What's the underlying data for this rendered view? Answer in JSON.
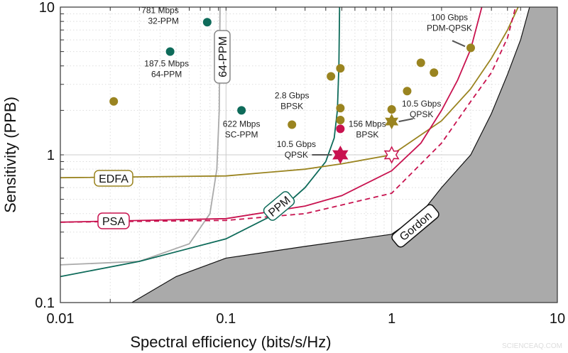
{
  "chart_data": {
    "type": "scatter",
    "xlabel": "Spectral efficiency (bits/s/Hz)",
    "ylabel": "Sensitivity (PPB)",
    "xscale": "log",
    "yscale": "log",
    "xlim": [
      0.01,
      10
    ],
    "ylim": [
      0.1,
      10
    ],
    "xticks": [
      "0.01",
      "0.1",
      "1",
      "10"
    ],
    "yticks": [
      "0.1",
      "1",
      "10"
    ],
    "grid": true,
    "colors": {
      "teal": "#0e6b5a",
      "olive": "#9a8420",
      "crimson": "#c8124f",
      "gray": "#aaaaaa",
      "shade": "#aaaaaa"
    },
    "curves": [
      {
        "name": "Gordon",
        "color": "#111111",
        "dash": false,
        "points": [
          [
            0.027,
            0.1
          ],
          [
            0.05,
            0.15
          ],
          [
            0.1,
            0.2
          ],
          [
            0.3,
            0.24
          ],
          [
            0.5,
            0.26
          ],
          [
            1,
            0.29
          ],
          [
            1.5,
            0.4
          ],
          [
            2,
            0.6
          ],
          [
            3,
            1.0
          ],
          [
            4,
            1.9
          ],
          [
            5,
            3.5
          ],
          [
            6,
            6
          ],
          [
            6.8,
            10
          ]
        ]
      },
      {
        "name": "PSA",
        "color": "#c8124f",
        "dash": false,
        "points": [
          [
            0.01,
            0.35
          ],
          [
            0.1,
            0.37
          ],
          [
            0.3,
            0.45
          ],
          [
            0.5,
            0.53
          ],
          [
            1,
            0.78
          ],
          [
            1.5,
            1.2
          ],
          [
            2,
            2
          ],
          [
            2.5,
            3.2
          ],
          [
            3,
            5.2
          ],
          [
            3.5,
            10
          ]
        ]
      },
      {
        "name": "",
        "color": "#c8124f",
        "dash": true,
        "points": [
          [
            0.01,
            0.35
          ],
          [
            0.1,
            0.36
          ],
          [
            0.3,
            0.4
          ],
          [
            1,
            0.55
          ],
          [
            2,
            1.2
          ],
          [
            3,
            2.3
          ],
          [
            4,
            3.6
          ],
          [
            5,
            6.2
          ],
          [
            5.6,
            10
          ]
        ]
      },
      {
        "name": "EDFA",
        "color": "#9a8420",
        "dash": false,
        "points": [
          [
            0.01,
            0.7
          ],
          [
            0.1,
            0.72
          ],
          [
            0.3,
            0.8
          ],
          [
            0.5,
            0.87
          ],
          [
            1,
            1.0
          ],
          [
            2,
            1.7
          ],
          [
            3,
            2.8
          ],
          [
            4,
            4.5
          ],
          [
            5,
            7
          ],
          [
            5.8,
            10
          ]
        ]
      },
      {
        "name": "PPM",
        "color": "#0e6b5a",
        "dash": false,
        "points": [
          [
            0.01,
            0.15
          ],
          [
            0.03,
            0.19
          ],
          [
            0.1,
            0.27
          ],
          [
            0.2,
            0.4
          ],
          [
            0.3,
            0.6
          ],
          [
            0.4,
            0.9
          ],
          [
            0.45,
            1.3
          ],
          [
            0.47,
            2
          ],
          [
            0.48,
            4
          ],
          [
            0.485,
            10
          ]
        ]
      },
      {
        "name": "64-PPM",
        "color": "#aaaaaa",
        "dash": false,
        "points": [
          [
            0.01,
            0.18
          ],
          [
            0.03,
            0.19
          ],
          [
            0.06,
            0.25
          ],
          [
            0.08,
            0.4
          ],
          [
            0.088,
            0.8
          ],
          [
            0.091,
            2
          ],
          [
            0.092,
            10
          ]
        ]
      }
    ],
    "points": [
      {
        "x": 0.077,
        "y": 7.9,
        "marker": "dot",
        "color": "#0e6b5a",
        "label": [
          "781 Mbps",
          "32-PPM"
        ]
      },
      {
        "x": 0.046,
        "y": 5.0,
        "marker": "dot",
        "color": "#0e6b5a",
        "label": [
          "187.5 Mbps",
          "64-PPM"
        ]
      },
      {
        "x": 0.124,
        "y": 2.0,
        "marker": "dot",
        "color": "#0e6b5a",
        "label": [
          "622 Mbps",
          "SC-PPM"
        ]
      },
      {
        "x": 0.021,
        "y": 2.3,
        "marker": "dot",
        "color": "#9a8420",
        "label": []
      },
      {
        "x": 0.25,
        "y": 1.6,
        "marker": "dot",
        "color": "#9a8420",
        "label": [
          "2.8 Gbps",
          "BPSK"
        ]
      },
      {
        "x": 0.43,
        "y": 3.4,
        "marker": "dot",
        "color": "#9a8420",
        "label": []
      },
      {
        "x": 0.49,
        "y": 3.85,
        "marker": "dot",
        "color": "#9a8420",
        "label": []
      },
      {
        "x": 0.49,
        "y": 2.07,
        "marker": "dot",
        "color": "#9a8420",
        "label": []
      },
      {
        "x": 0.49,
        "y": 1.72,
        "marker": "dot",
        "color": "#9a8420",
        "label": []
      },
      {
        "x": 0.49,
        "y": 1.5,
        "marker": "dot",
        "color": "#c8124f",
        "label": [
          "156 Mbps",
          "BPSK"
        ]
      },
      {
        "x": 0.49,
        "y": 1.0,
        "marker": "star",
        "color": "#c8124f",
        "label": [
          "10.5 Gbps",
          "QPSK"
        ]
      },
      {
        "x": 1.0,
        "y": 1.0,
        "marker": "open-star",
        "color": "#c8124f",
        "label": []
      },
      {
        "x": 1.0,
        "y": 2.03,
        "marker": "dot",
        "color": "#9a8420",
        "label": []
      },
      {
        "x": 1.0,
        "y": 1.68,
        "marker": "star",
        "color": "#9a8420",
        "label": [
          "10.5 Gbps",
          "QPSK"
        ]
      },
      {
        "x": 1.24,
        "y": 2.7,
        "marker": "dot",
        "color": "#9a8420",
        "label": []
      },
      {
        "x": 1.5,
        "y": 4.2,
        "marker": "dot",
        "color": "#9a8420",
        "label": []
      },
      {
        "x": 1.8,
        "y": 3.6,
        "marker": "dot",
        "color": "#9a8420",
        "label": []
      },
      {
        "x": 3.0,
        "y": 5.3,
        "marker": "dot",
        "color": "#9a8420",
        "label": [
          "100 Gbps",
          "PDM-QPSK"
        ]
      }
    ]
  },
  "watermark": "SCIENCEAQ.COM"
}
